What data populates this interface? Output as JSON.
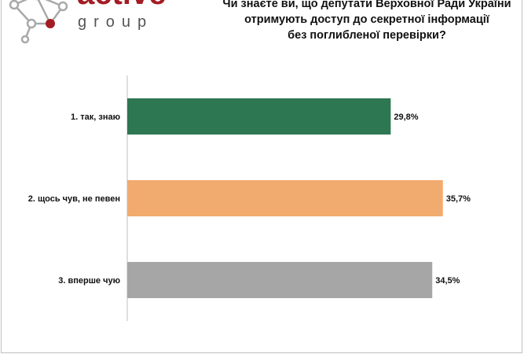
{
  "brand": {
    "name": "active",
    "sub": "group",
    "color": "#a31c24"
  },
  "title_lines": [
    "Чи знаєте ви, що депутати Верховної Ради України",
    "отримують доступ до секретної інформації",
    "без поглибленої перевірки?"
  ],
  "chart_data": {
    "type": "bar",
    "orientation": "horizontal",
    "categories": [
      "1. так, знаю",
      "2. щось чув, не певен",
      "3. вперше чую"
    ],
    "values": [
      29.8,
      35.7,
      34.5
    ],
    "value_labels": [
      "29,8%",
      "35,7%",
      "34,5%"
    ],
    "colors": [
      "#2e7753",
      "#f2ab6e",
      "#a6a6a6"
    ],
    "xlim": [
      0,
      37.5
    ],
    "grid": false,
    "legend": "none"
  }
}
